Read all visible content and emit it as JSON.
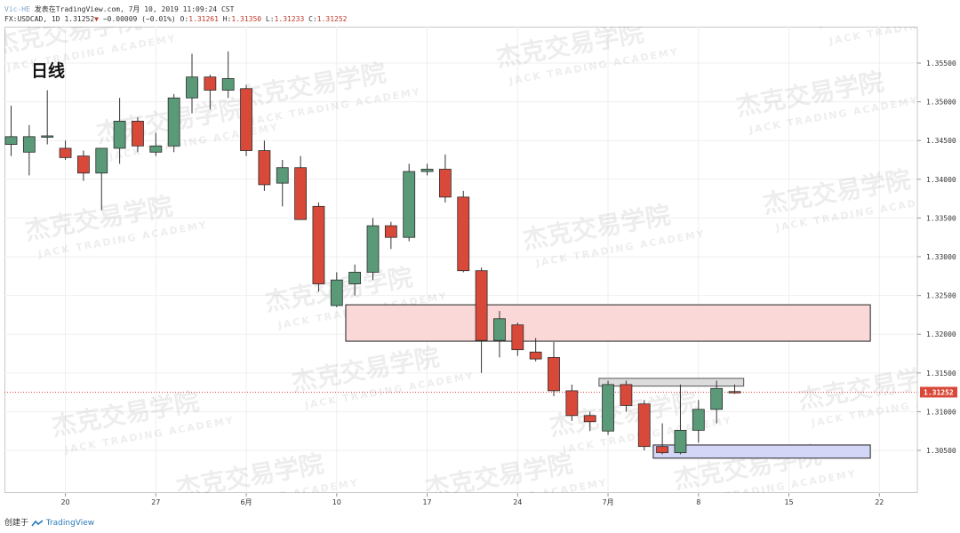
{
  "header": {
    "author": "Vic-HE",
    "published": "发表在TradingView.com, 7月 10, 2019 11:09:24 CST",
    "symbol": "FX:USDCAD, 1D",
    "last": "1.31252",
    "change_arrow": "▼",
    "change": "−0.00009 (−0.01%)",
    "o_label": "O:",
    "o": "1.31261",
    "h_label": "H:",
    "h": "1.31350",
    "l_label": "L:",
    "l": "1.31233",
    "c_label": "C:",
    "c": "1.31252"
  },
  "annotation": "日线",
  "watermark": {
    "cn": "杰克交易学院",
    "en": "JACK TRADING ACADEMY"
  },
  "footer": {
    "created_with": "创建于",
    "brand": "TradingView"
  },
  "colors": {
    "up": "#5a9a78",
    "down": "#d9493a",
    "grid": "#efefef",
    "resistance_zone": "#fbd8d8",
    "support_zone": "#d4d6f7",
    "range_box": "#dcdcdc",
    "price_line": "#d9493a"
  },
  "chart_data": {
    "type": "candlestick",
    "symbol": "USDCAD",
    "timeframe": "1D",
    "x_ticks": [
      {
        "label": "20",
        "bar": 3
      },
      {
        "label": "27",
        "bar": 8
      },
      {
        "label": "6月",
        "bar": 13
      },
      {
        "label": "10",
        "bar": 18
      },
      {
        "label": "17",
        "bar": 23
      },
      {
        "label": "24",
        "bar": 28
      },
      {
        "label": "7月",
        "bar": 33
      },
      {
        "label": "8",
        "bar": 38
      },
      {
        "label": "15",
        "bar": 43
      },
      {
        "label": "22",
        "bar": 48
      }
    ],
    "y_ticks": [
      "1.35500",
      "1.35000",
      "1.34500",
      "1.34000",
      "1.33500",
      "1.33000",
      "1.32500",
      "1.32000",
      "1.31500",
      "1.31000",
      "1.30500"
    ],
    "ylim": [
      1.2995,
      1.3597
    ],
    "last_price_label": "1.31252",
    "candles": [
      {
        "o": 1.3445,
        "h": 1.3495,
        "l": 1.343,
        "c": 1.3455
      },
      {
        "o": 1.3435,
        "h": 1.347,
        "l": 1.3405,
        "c": 1.3455
      },
      {
        "o": 1.3455,
        "h": 1.3515,
        "l": 1.3445,
        "c": 1.3456
      },
      {
        "o": 1.344,
        "h": 1.345,
        "l": 1.3425,
        "c": 1.3428
      },
      {
        "o": 1.343,
        "h": 1.3437,
        "l": 1.3398,
        "c": 1.3408
      },
      {
        "o": 1.3408,
        "h": 1.344,
        "l": 1.336,
        "c": 1.344
      },
      {
        "o": 1.344,
        "h": 1.3505,
        "l": 1.342,
        "c": 1.3475
      },
      {
        "o": 1.3475,
        "h": 1.348,
        "l": 1.3435,
        "c": 1.3443
      },
      {
        "o": 1.3435,
        "h": 1.346,
        "l": 1.343,
        "c": 1.3443
      },
      {
        "o": 1.3443,
        "h": 1.351,
        "l": 1.3435,
        "c": 1.3505
      },
      {
        "o": 1.3505,
        "h": 1.3562,
        "l": 1.3485,
        "c": 1.3532
      },
      {
        "o": 1.3532,
        "h": 1.3535,
        "l": 1.349,
        "c": 1.3515
      },
      {
        "o": 1.3515,
        "h": 1.3565,
        "l": 1.3505,
        "c": 1.353
      },
      {
        "o": 1.3517,
        "h": 1.3522,
        "l": 1.343,
        "c": 1.3437
      },
      {
        "o": 1.3437,
        "h": 1.345,
        "l": 1.3385,
        "c": 1.3393
      },
      {
        "o": 1.3395,
        "h": 1.3425,
        "l": 1.3365,
        "c": 1.3415
      },
      {
        "o": 1.3415,
        "h": 1.343,
        "l": 1.335,
        "c": 1.3348
      },
      {
        "o": 1.3365,
        "h": 1.337,
        "l": 1.3255,
        "c": 1.3265
      },
      {
        "o": 1.3237,
        "h": 1.328,
        "l": 1.3235,
        "c": 1.327
      },
      {
        "o": 1.3265,
        "h": 1.329,
        "l": 1.325,
        "c": 1.328
      },
      {
        "o": 1.328,
        "h": 1.335,
        "l": 1.327,
        "c": 1.334
      },
      {
        "o": 1.334,
        "h": 1.3345,
        "l": 1.331,
        "c": 1.3325
      },
      {
        "o": 1.3325,
        "h": 1.342,
        "l": 1.332,
        "c": 1.341
      },
      {
        "o": 1.341,
        "h": 1.342,
        "l": 1.3405,
        "c": 1.3413
      },
      {
        "o": 1.3413,
        "h": 1.3432,
        "l": 1.337,
        "c": 1.3377
      },
      {
        "o": 1.3377,
        "h": 1.3385,
        "l": 1.328,
        "c": 1.3282
      },
      {
        "o": 1.3282,
        "h": 1.3286,
        "l": 1.315,
        "c": 1.3192
      },
      {
        "o": 1.3192,
        "h": 1.323,
        "l": 1.317,
        "c": 1.322
      },
      {
        "o": 1.3212,
        "h": 1.3215,
        "l": 1.3172,
        "c": 1.318
      },
      {
        "o": 1.3177,
        "h": 1.3195,
        "l": 1.3165,
        "c": 1.3168
      },
      {
        "o": 1.317,
        "h": 1.319,
        "l": 1.312,
        "c": 1.3127
      },
      {
        "o": 1.3127,
        "h": 1.3135,
        "l": 1.3088,
        "c": 1.3095
      },
      {
        "o": 1.3095,
        "h": 1.31,
        "l": 1.3075,
        "c": 1.3087
      },
      {
        "o": 1.3075,
        "h": 1.314,
        "l": 1.307,
        "c": 1.3135
      },
      {
        "o": 1.3135,
        "h": 1.314,
        "l": 1.31,
        "c": 1.3108
      },
      {
        "o": 1.311,
        "h": 1.3115,
        "l": 1.305,
        "c": 1.3055
      },
      {
        "o": 1.3055,
        "h": 1.3085,
        "l": 1.3045,
        "c": 1.3047
      },
      {
        "o": 1.3047,
        "h": 1.3135,
        "l": 1.3045,
        "c": 1.3076
      },
      {
        "o": 1.3076,
        "h": 1.3115,
        "l": 1.306,
        "c": 1.3103
      },
      {
        "o": 1.3103,
        "h": 1.314,
        "l": 1.3085,
        "c": 1.313
      },
      {
        "o": 1.3126,
        "h": 1.3135,
        "l": 1.3123,
        "c": 1.3125
      }
    ],
    "zones": [
      {
        "name": "resistance-zone",
        "x0_bar": 18.5,
        "x1_bar": 47.5,
        "top": 1.3238,
        "bottom": 1.3191
      },
      {
        "name": "range-high-box",
        "x0_bar": 32.5,
        "x1_bar": 40.5,
        "top": 1.3143,
        "bottom": 1.3133
      },
      {
        "name": "support-zone",
        "x0_bar": 35.5,
        "x1_bar": 47.5,
        "top": 1.3057,
        "bottom": 1.304
      }
    ]
  }
}
